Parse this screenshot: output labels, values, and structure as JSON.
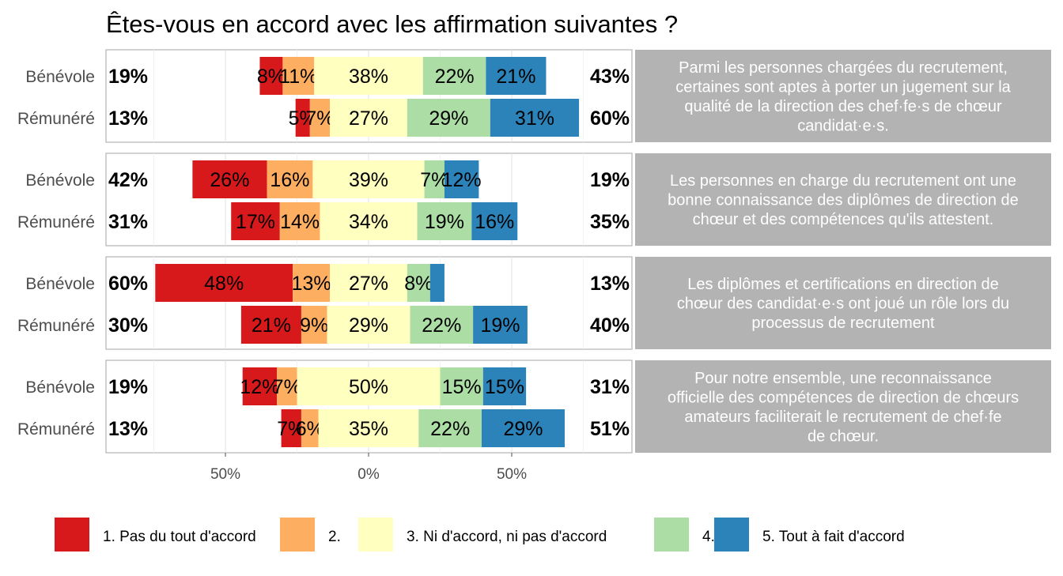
{
  "chart_data": {
    "type": "bar",
    "subtype": "diverging-stacked-likert",
    "title": "Êtes-vous en accord avec les affirmation suivantes ?",
    "x_ticks": [
      -50,
      0,
      50
    ],
    "x_tick_labels": [
      "50%",
      "0%",
      "50%"
    ],
    "xlim": [
      -92,
      92
    ],
    "legend": {
      "position": "bottom",
      "entries": [
        "1. Pas du tout d'accord",
        "2.",
        "3. Ni d'accord, ni pas d'accord",
        "4.",
        "5. Tout à fait d'accord"
      ]
    },
    "colors": [
      "#d7191c",
      "#fdae61",
      "#ffffbf",
      "#abdda4",
      "#2b83ba"
    ],
    "strip_color": "#b3b3b3",
    "panels": [
      {
        "statement_lines": [
          "Parmi les personnes chargées du recrutement,",
          "certaines sont aptes à porter un jugement sur la",
          "qualité de la direction des chef·fe·s de chœur",
          "candidat·e·s."
        ],
        "rows": [
          {
            "group": "Bénévole",
            "values": [
              8,
              11,
              38,
              22,
              21
            ],
            "labels": [
              "8%",
              "11%",
              "38%",
              "22%",
              "21%"
            ],
            "left_total": "19%",
            "right_total": "43%"
          },
          {
            "group": "Rémunéré",
            "values": [
              5,
              7,
              27,
              29,
              31
            ],
            "labels": [
              "5%",
              "7%",
              "27%",
              "29%",
              "31%"
            ],
            "left_total": "13%",
            "right_total": "60%"
          }
        ]
      },
      {
        "statement_lines": [
          "Les personnes en charge du recrutement ont une",
          "bonne connaissance des diplômes de direction de",
          "chœur et des compétences qu'ils attestent."
        ],
        "rows": [
          {
            "group": "Bénévole",
            "values": [
              26,
              16,
              39,
              7,
              12
            ],
            "labels": [
              "26%",
              "16%",
              "39%",
              "7%",
              "12%"
            ],
            "left_total": "42%",
            "right_total": "19%"
          },
          {
            "group": "Rémunéré",
            "values": [
              17,
              14,
              34,
              19,
              16
            ],
            "labels": [
              "17%",
              "14%",
              "34%",
              "19%",
              "16%"
            ],
            "left_total": "31%",
            "right_total": "35%"
          }
        ]
      },
      {
        "statement_lines": [
          "Les diplômes et certifications en direction de",
          "chœur des candidat·e·s ont joué un rôle lors du",
          "processus de recrutement"
        ],
        "rows": [
          {
            "group": "Bénévole",
            "values": [
              48,
              13,
              27,
              8,
              5
            ],
            "labels": [
              "48%",
              "13%",
              "27%",
              "8%",
              ""
            ],
            "left_total": "60%",
            "right_total": "13%"
          },
          {
            "group": "Rémunéré",
            "values": [
              21,
              9,
              29,
              22,
              19
            ],
            "labels": [
              "21%",
              "9%",
              "29%",
              "22%",
              "19%"
            ],
            "left_total": "30%",
            "right_total": "40%"
          }
        ]
      },
      {
        "statement_lines": [
          "Pour notre ensemble, une reconnaissance",
          "officielle des compétences de direction de chœurs",
          "amateurs faciliterait le recrutement de chef·fe",
          "de chœur."
        ],
        "rows": [
          {
            "group": "Bénévole",
            "values": [
              12,
              7,
              50,
              15,
              15
            ],
            "labels": [
              "12%",
              "7%",
              "50%",
              "15%",
              "15%"
            ],
            "left_total": "19%",
            "right_total": "31%"
          },
          {
            "group": "Rémunéré",
            "values": [
              7,
              6,
              35,
              22,
              29
            ],
            "labels": [
              "7%",
              "6%",
              "35%",
              "22%",
              "29%"
            ],
            "left_total": "13%",
            "right_total": "51%"
          }
        ]
      }
    ]
  }
}
